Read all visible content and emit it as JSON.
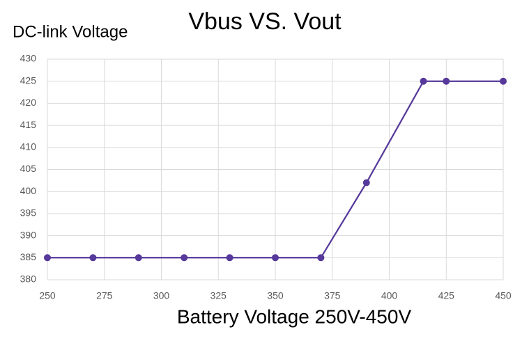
{
  "chart_data": {
    "type": "line",
    "title": "Vbus VS. Vout",
    "y_label": "DC-link Voltage",
    "x_label": "Battery Voltage 250V-450V",
    "x": [
      250,
      270,
      290,
      310,
      330,
      350,
      370,
      390,
      415,
      425,
      450
    ],
    "series": [
      {
        "name": "DC-link Voltage",
        "color": "#56399a",
        "values": [
          385,
          385,
          385,
          385,
          385,
          385,
          385,
          402,
          425,
          425,
          425
        ]
      }
    ],
    "xlim": [
      250,
      450
    ],
    "xticks": [
      250,
      275,
      300,
      325,
      350,
      375,
      400,
      425,
      450
    ],
    "ylim": [
      380,
      430
    ],
    "yticks": [
      380,
      385,
      390,
      395,
      400,
      405,
      410,
      415,
      420,
      425,
      430
    ],
    "grid": true
  }
}
